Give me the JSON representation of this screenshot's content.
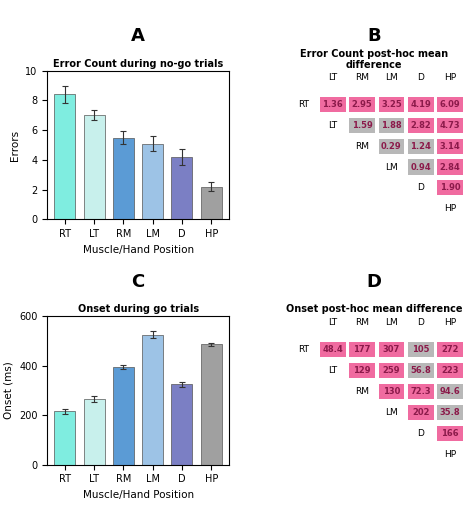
{
  "chart_data": [
    {
      "type": "bar",
      "title": "A",
      "subtitle": "Error Count during no-go trials",
      "categories": [
        "RT",
        "LT",
        "RM",
        "LM",
        "D",
        "HP"
      ],
      "values": [
        8.4,
        7.0,
        5.5,
        5.1,
        4.2,
        2.2
      ],
      "errors": [
        0.55,
        0.35,
        0.45,
        0.5,
        0.55,
        0.3
      ],
      "colors": [
        "#7FEDE0",
        "#C8F0EC",
        "#5B9BD5",
        "#9DC3E6",
        "#7B7FC4",
        "#A0A0A0"
      ],
      "ylabel": "Errors",
      "xlabel": "Muscle/Hand Position",
      "ylim": [
        0,
        10
      ],
      "yticks": [
        0,
        2,
        4,
        6,
        8,
        10
      ]
    },
    {
      "type": "matrix",
      "title": "B",
      "subtitle": "Error Count post-hoc mean difference",
      "labels": [
        "RT",
        "LT",
        "RM",
        "LM",
        "D",
        "HP"
      ],
      "values": [
        [
          null,
          1.36,
          2.95,
          3.25,
          4.19,
          6.09
        ],
        [
          null,
          null,
          1.59,
          1.88,
          2.82,
          4.73
        ],
        [
          null,
          null,
          null,
          0.29,
          1.24,
          3.14
        ],
        [
          null,
          null,
          null,
          null,
          0.94,
          2.84
        ],
        [
          null,
          null,
          null,
          null,
          null,
          1.9
        ],
        [
          null,
          null,
          null,
          null,
          null,
          null
        ]
      ],
      "value_labels": [
        [
          null,
          "1.36",
          "2.95",
          "3.25",
          "4.19",
          "6.09"
        ],
        [
          null,
          null,
          "1.59",
          "1.88",
          "2.82",
          "4.73"
        ],
        [
          null,
          null,
          null,
          "0.29",
          "1.24",
          "3.14"
        ],
        [
          null,
          null,
          null,
          null,
          "0.94",
          "2.84"
        ],
        [
          null,
          null,
          null,
          null,
          null,
          "1.90"
        ],
        [
          null,
          null,
          null,
          null,
          null,
          null
        ]
      ],
      "colors": [
        [
          null,
          "#F06BA0",
          "#F06BA0",
          "#F06BA0",
          "#F06BA0",
          "#F06BA0"
        ],
        [
          null,
          null,
          "#B8B8B8",
          "#B8B8B8",
          "#F06BA0",
          "#F06BA0"
        ],
        [
          null,
          null,
          null,
          "#B8B8B8",
          "#B8B8B8",
          "#F06BA0"
        ],
        [
          null,
          null,
          null,
          null,
          "#B8B8B8",
          "#F06BA0"
        ],
        [
          null,
          null,
          null,
          null,
          null,
          "#F06BA0"
        ],
        [
          null,
          null,
          null,
          null,
          null,
          null
        ]
      ],
      "color": "#8B1A4A"
    },
    {
      "type": "bar",
      "title": "C",
      "subtitle": "Onset during go trials",
      "categories": [
        "RT",
        "LT",
        "RM",
        "LM",
        "D",
        "HP"
      ],
      "values": [
        215,
        265,
        395,
        525,
        325,
        485
      ],
      "errors": [
        10,
        12,
        8,
        15,
        10,
        5
      ],
      "colors": [
        "#7FEDE0",
        "#C8F0EC",
        "#5B9BD5",
        "#9DC3E6",
        "#7B7FC4",
        "#A0A0A0"
      ],
      "ylabel": "Onset (ms)",
      "xlabel": "Muscle/Hand Position",
      "ylim": [
        0,
        600
      ],
      "yticks": [
        0,
        200,
        400,
        600
      ]
    },
    {
      "type": "matrix",
      "title": "D",
      "subtitle": "Onset post-hoc mean difference",
      "labels": [
        "RT",
        "LT",
        "RM",
        "LM",
        "D",
        "HP"
      ],
      "values": [
        [
          null,
          48.4,
          177,
          307,
          105,
          272
        ],
        [
          null,
          null,
          129,
          259,
          56.8,
          223
        ],
        [
          null,
          null,
          null,
          130,
          72.3,
          94.6
        ],
        [
          null,
          null,
          null,
          null,
          202,
          35.8
        ],
        [
          null,
          null,
          null,
          null,
          null,
          166
        ],
        [
          null,
          null,
          null,
          null,
          null,
          null
        ]
      ],
      "value_labels": [
        [
          null,
          "48.4",
          "177",
          "307",
          "105",
          "272"
        ],
        [
          null,
          null,
          "129",
          "259",
          "56.8",
          "223"
        ],
        [
          null,
          null,
          null,
          "130",
          "72.3",
          "94.6"
        ],
        [
          null,
          null,
          null,
          null,
          "202",
          "35.8"
        ],
        [
          null,
          null,
          null,
          null,
          null,
          "166"
        ],
        [
          null,
          null,
          null,
          null,
          null,
          null
        ]
      ],
      "colors": [
        [
          null,
          "#F06BA0",
          "#F06BA0",
          "#F06BA0",
          "#B8B8B8",
          "#F06BA0"
        ],
        [
          null,
          null,
          "#F06BA0",
          "#F06BA0",
          "#B8B8B8",
          "#F06BA0"
        ],
        [
          null,
          null,
          null,
          "#F06BA0",
          "#F06BA0",
          "#B8B8B8"
        ],
        [
          null,
          null,
          null,
          null,
          "#F06BA0",
          "#B8B8B8"
        ],
        [
          null,
          null,
          null,
          null,
          null,
          "#F06BA0"
        ],
        [
          null,
          null,
          null,
          null,
          null,
          null
        ]
      ],
      "color": "#8B1A4A"
    }
  ]
}
